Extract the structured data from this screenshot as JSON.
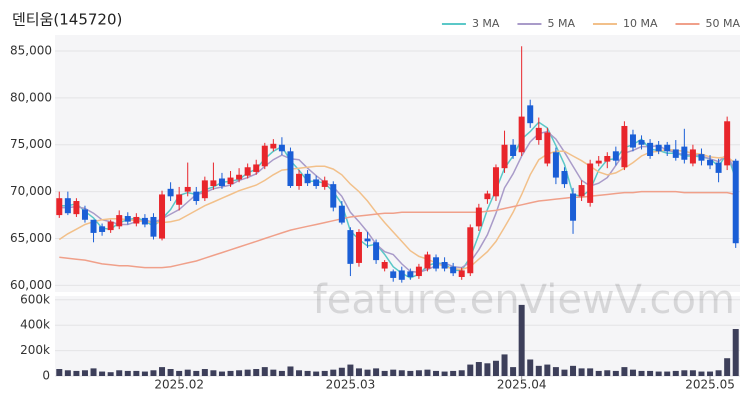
{
  "chart_data": [
    {
      "type": "candlestick",
      "title": "덴티움(145720)",
      "watermark": "feature.enViewV.com",
      "legend_position": "top-right",
      "grid": true,
      "up_color": "#e8252b",
      "down_color": "#1a5ed6",
      "categories": [
        null,
        null,
        null,
        null,
        null,
        null,
        null,
        null,
        null,
        null,
        null,
        null,
        null,
        null,
        "2025.02",
        null,
        null,
        null,
        null,
        null,
        null,
        null,
        null,
        null,
        null,
        null,
        null,
        null,
        null,
        null,
        null,
        null,
        null,
        null,
        "2025.03",
        null,
        null,
        null,
        null,
        null,
        null,
        null,
        null,
        null,
        null,
        null,
        null,
        null,
        null,
        null,
        null,
        null,
        null,
        null,
        "2025.04",
        null,
        null,
        null,
        null,
        null,
        null,
        null,
        null,
        null,
        null,
        null,
        null,
        null,
        null,
        null,
        null,
        null,
        null,
        null,
        null,
        null,
        "2025.05",
        null,
        null,
        null
      ],
      "open": [
        67500,
        69300,
        67600,
        68100,
        67000,
        66300,
        65900,
        66300,
        67400,
        66600,
        67200,
        67300,
        65000,
        70300,
        68600,
        70000,
        70000,
        69300,
        70600,
        71400,
        70800,
        71300,
        71700,
        72100,
        72700,
        74600,
        75000,
        74300,
        70600,
        71900,
        71300,
        70500,
        70800,
        68500,
        65900,
        62400,
        65000,
        64600,
        61800,
        61500,
        61600,
        61500,
        61000,
        61800,
        63000,
        62500,
        62000,
        60900,
        61300,
        66300,
        69200,
        69500,
        72500,
        75000,
        74200,
        79200,
        75500,
        73000,
        74200,
        72200,
        69800,
        69500,
        68800,
        73000,
        73200,
        74300,
        72600,
        76100,
        75500,
        75200,
        75000,
        75000,
        74500,
        74800,
        73000,
        74000,
        73400,
        73100,
        72800,
        73300
      ],
      "high": [
        70000,
        70000,
        69300,
        68500,
        67000,
        66600,
        67000,
        68000,
        67800,
        67700,
        67600,
        67700,
        70100,
        71000,
        70500,
        73100,
        70500,
        71600,
        73100,
        72000,
        72200,
        72500,
        73000,
        73400,
        75200,
        75600,
        75800,
        74700,
        72300,
        72300,
        71700,
        71600,
        71100,
        69000,
        66200,
        66000,
        65700,
        64900,
        62700,
        61700,
        62000,
        61800,
        62300,
        63600,
        63300,
        63000,
        62400,
        61900,
        66500,
        68700,
        70100,
        72900,
        76500,
        75600,
        85500,
        79800,
        77900,
        76800,
        74700,
        72600,
        70400,
        71200,
        73400,
        73800,
        74200,
        74800,
        77500,
        76600,
        76000,
        75600,
        75400,
        75300,
        75500,
        76700,
        75000,
        74600,
        73900,
        73500,
        78000,
        73500
      ],
      "low": [
        67200,
        67500,
        67300,
        66700,
        64600,
        65300,
        65600,
        66000,
        66500,
        66300,
        66200,
        64900,
        64800,
        69000,
        68000,
        69500,
        68600,
        69000,
        70200,
        70300,
        70500,
        71000,
        71400,
        71800,
        72400,
        74300,
        73900,
        70400,
        70200,
        70600,
        70300,
        70200,
        67900,
        66500,
        61000,
        62000,
        64000,
        62300,
        61500,
        60400,
        60300,
        60600,
        60700,
        61500,
        61500,
        61500,
        61000,
        60600,
        61000,
        65800,
        68700,
        69000,
        72000,
        73500,
        73800,
        76800,
        75000,
        72700,
        70800,
        70400,
        65500,
        69000,
        68400,
        72700,
        72500,
        72800,
        72300,
        74300,
        74500,
        73500,
        74000,
        73800,
        73300,
        73000,
        72700,
        72800,
        72400,
        71000,
        72300,
        64000
      ],
      "close": [
        69300,
        67700,
        69000,
        67000,
        65600,
        65700,
        66800,
        67500,
        66800,
        67300,
        66500,
        65200,
        69700,
        69500,
        69700,
        70500,
        69000,
        71200,
        71200,
        70600,
        71500,
        71800,
        72600,
        72900,
        74900,
        75100,
        74300,
        70600,
        71900,
        70900,
        70600,
        71200,
        68300,
        66700,
        62300,
        65700,
        64700,
        62700,
        62500,
        60800,
        60600,
        60900,
        62000,
        63300,
        61800,
        61800,
        61300,
        61600,
        66200,
        68300,
        69800,
        72600,
        75000,
        73800,
        78000,
        77300,
        76800,
        76300,
        71500,
        70800,
        66900,
        70700,
        73000,
        73300,
        73800,
        73300,
        77000,
        74700,
        75000,
        73800,
        74300,
        74300,
        73600,
        73400,
        74500,
        73300,
        72800,
        72000,
        77500,
        64500
      ],
      "series": [
        {
          "name": "3 MA",
          "color": "#5bc8c8",
          "values": [
            68500,
            68500,
            68700,
            67900,
            67200,
            66100,
            66000,
            66700,
            67000,
            67200,
            66900,
            66300,
            67100,
            68100,
            69600,
            69900,
            69700,
            70200,
            70500,
            71000,
            71100,
            71300,
            72000,
            72400,
            73500,
            74300,
            74800,
            73300,
            72300,
            71100,
            71100,
            70900,
            70000,
            68700,
            65800,
            64900,
            64200,
            64400,
            63300,
            62000,
            61300,
            60800,
            61200,
            62100,
            62400,
            62300,
            61600,
            61600,
            63000,
            65400,
            68100,
            70200,
            72500,
            73800,
            75600,
            76400,
            77400,
            76800,
            74900,
            72900,
            69700,
            69500,
            70200,
            72300,
            73400,
            73500,
            74700,
            75000,
            75600,
            74500,
            74400,
            74100,
            74100,
            73800,
            73800,
            73700,
            73500,
            72700,
            74100,
            71300
          ]
        },
        {
          "name": "5 MA",
          "color": "#a99bc9",
          "values": [
            68300,
            68300,
            68400,
            68200,
            67700,
            67000,
            66800,
            66500,
            66500,
            66800,
            67000,
            66700,
            67100,
            67600,
            68100,
            68900,
            69700,
            69900,
            70300,
            70500,
            70700,
            71200,
            71500,
            71900,
            72700,
            73400,
            73900,
            73500,
            73400,
            72500,
            71700,
            71000,
            70500,
            69500,
            67800,
            66800,
            65700,
            64400,
            63600,
            63300,
            62300,
            61500,
            61400,
            61700,
            62100,
            62400,
            62000,
            61900,
            62500,
            63800,
            65400,
            67700,
            70400,
            71900,
            73800,
            75300,
            76200,
            76400,
            75600,
            74200,
            72700,
            71200,
            70600,
            70900,
            71500,
            72800,
            74100,
            74400,
            74800,
            74800,
            74900,
            74400,
            74200,
            73900,
            74000,
            73800,
            73500,
            73200,
            74000,
            72000
          ]
        },
        {
          "name": "10 MA",
          "color": "#f2c08a",
          "values": [
            64900,
            65500,
            66000,
            66500,
            66800,
            67000,
            67100,
            67100,
            67000,
            66900,
            66800,
            66700,
            66700,
            66800,
            67000,
            67500,
            68000,
            68500,
            68900,
            69300,
            69700,
            70100,
            70400,
            70700,
            71200,
            71800,
            72300,
            72400,
            72500,
            72600,
            72700,
            72700,
            72400,
            71800,
            70800,
            70000,
            69000,
            67800,
            66700,
            65700,
            64700,
            63700,
            63100,
            62800,
            62400,
            62000,
            61800,
            61700,
            62000,
            62800,
            63600,
            64700,
            66200,
            67800,
            69700,
            71800,
            73400,
            74000,
            74300,
            74300,
            73800,
            73300,
            72700,
            72100,
            71800,
            72000,
            72500,
            73100,
            73800,
            74200,
            74300,
            74500,
            74400,
            74300,
            74100,
            74000,
            73700,
            73600,
            73700,
            73000
          ]
        },
        {
          "name": "50 MA",
          "color": "#f0a08a",
          "values": [
            63000,
            62900,
            62800,
            62700,
            62500,
            62300,
            62200,
            62100,
            62100,
            62000,
            61900,
            61900,
            61900,
            62000,
            62200,
            62400,
            62600,
            62900,
            63200,
            63500,
            63800,
            64100,
            64400,
            64700,
            65000,
            65300,
            65600,
            65900,
            66100,
            66300,
            66500,
            66700,
            66900,
            67100,
            67300,
            67400,
            67500,
            67600,
            67700,
            67700,
            67800,
            67800,
            67800,
            67800,
            67800,
            67800,
            67800,
            67800,
            67800,
            67800,
            67900,
            68000,
            68200,
            68400,
            68600,
            68800,
            69000,
            69100,
            69200,
            69300,
            69400,
            69400,
            69500,
            69600,
            69700,
            69800,
            69900,
            69900,
            70000,
            70000,
            70000,
            70000,
            70000,
            69900,
            69900,
            69900,
            69900,
            69900,
            69900,
            69700
          ]
        }
      ],
      "ylim": [
        59300,
        86700
      ],
      "yticks": [
        {
          "value": 60000,
          "label": "60,000"
        },
        {
          "value": 65000,
          "label": "65,000"
        },
        {
          "value": 70000,
          "label": "70,000"
        },
        {
          "value": 75000,
          "label": "75,000"
        },
        {
          "value": 80000,
          "label": "80,000"
        },
        {
          "value": 85000,
          "label": "85,000"
        }
      ]
    },
    {
      "type": "bar",
      "color": "#3d3f5a",
      "values": [
        55000,
        45000,
        40000,
        45000,
        60000,
        35000,
        30000,
        45000,
        40000,
        40000,
        35000,
        45000,
        70000,
        55000,
        40000,
        50000,
        40000,
        55000,
        45000,
        35000,
        40000,
        45000,
        50000,
        55000,
        70000,
        50000,
        40000,
        75000,
        45000,
        40000,
        35000,
        40000,
        50000,
        65000,
        90000,
        60000,
        50000,
        60000,
        40000,
        50000,
        45000,
        40000,
        45000,
        50000,
        40000,
        35000,
        40000,
        45000,
        90000,
        110000,
        100000,
        120000,
        170000,
        70000,
        560000,
        130000,
        80000,
        90000,
        70000,
        50000,
        80000,
        60000,
        60000,
        40000,
        45000,
        40000,
        70000,
        50000,
        40000,
        40000,
        35000,
        35000,
        40000,
        45000,
        45000,
        35000,
        35000,
        45000,
        140000,
        370000
      ],
      "ylim": [
        0,
        630000
      ],
      "yticks": [
        0,
        {
          "value": 200000,
          "label": "200k"
        },
        {
          "value": 400000,
          "label": "400k"
        },
        {
          "value": 600000,
          "label": "600k"
        }
      ]
    }
  ]
}
